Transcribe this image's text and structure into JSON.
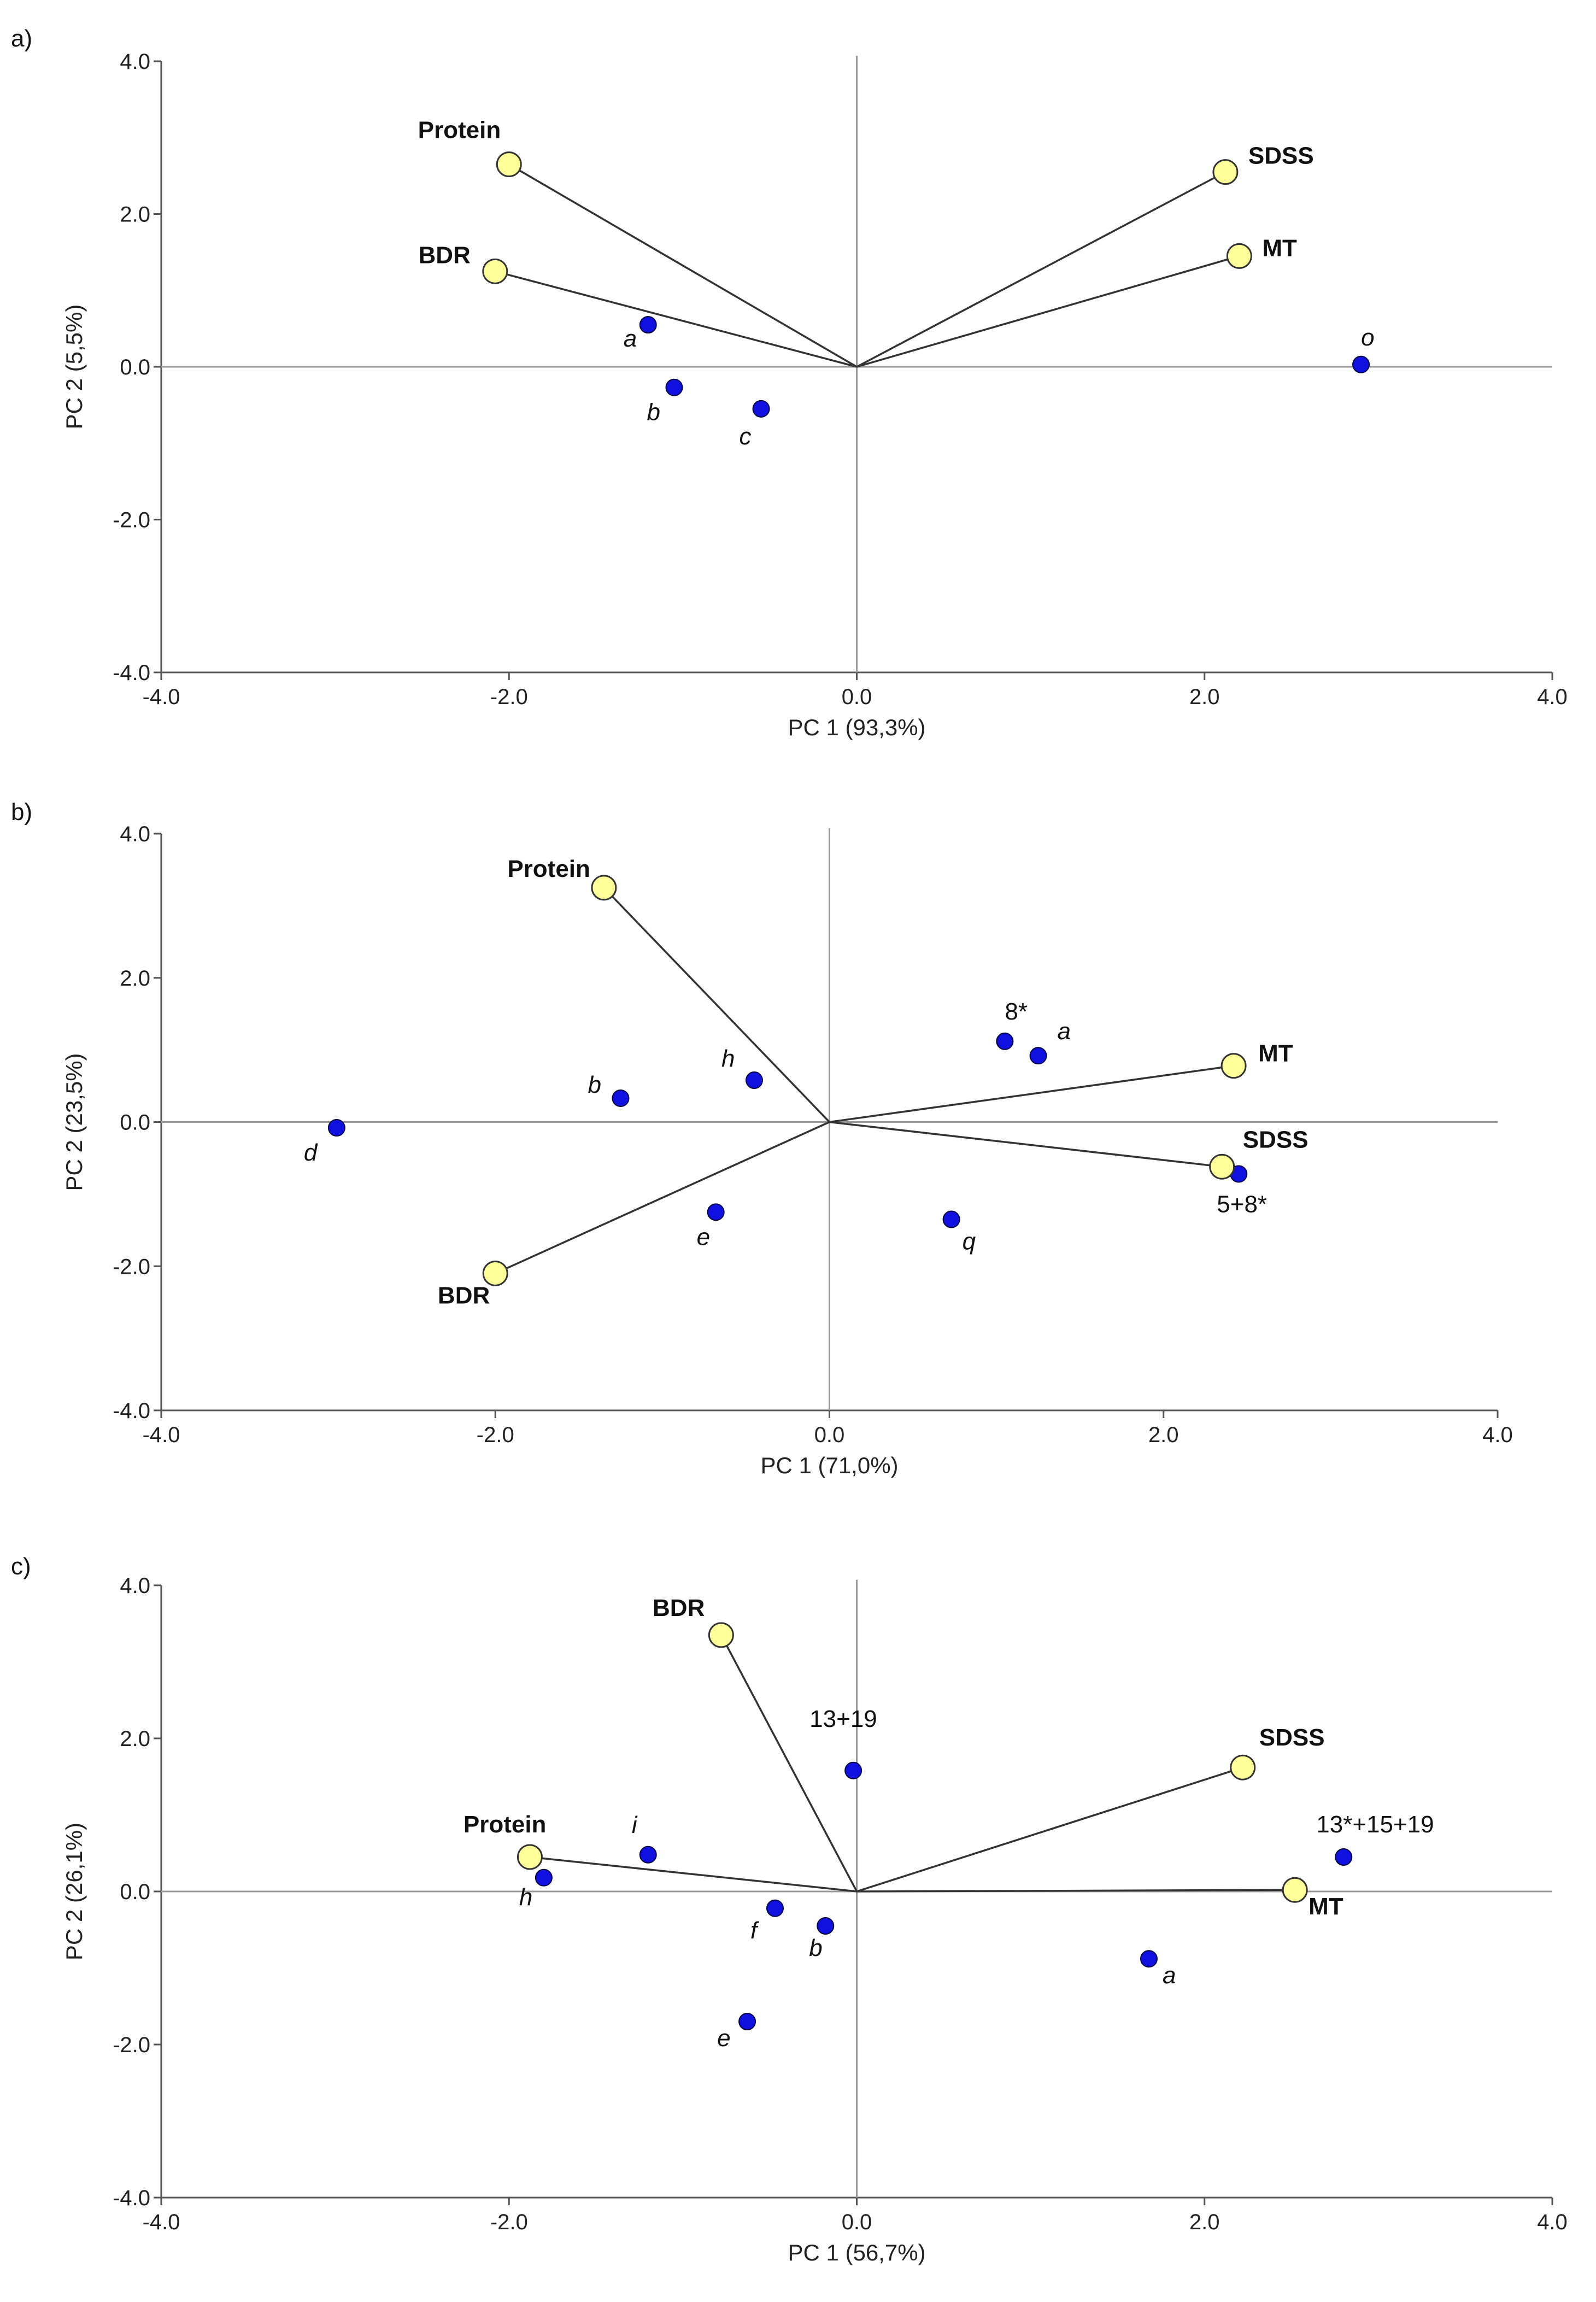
{
  "chart_data": [
    {
      "type": "scatter",
      "panel_label": "a)",
      "xlabel": "PC 1 (93,3%)",
      "ylabel": "PC 2 (5,5%)",
      "xlim": [
        -4,
        4
      ],
      "ylim": [
        -4,
        4
      ],
      "xticks": [
        "-4.0",
        "-2.0",
        "0.0",
        "2.0",
        "4.0"
      ],
      "yticks": [
        "4.0",
        "2.0",
        "0.0",
        "-2.0",
        "-4.0"
      ],
      "variables": [
        {
          "name": "Protein",
          "x": -2.0,
          "y": 2.65
        },
        {
          "name": "BDR",
          "x": -2.08,
          "y": 1.25
        },
        {
          "name": "SDSS",
          "x": 2.12,
          "y": 2.55
        },
        {
          "name": "MT",
          "x": 2.2,
          "y": 1.45
        }
      ],
      "observations": [
        {
          "name": "a",
          "x": -1.2,
          "y": 0.55,
          "italic": true
        },
        {
          "name": "b",
          "x": -1.05,
          "y": -0.27,
          "italic": true
        },
        {
          "name": "c",
          "x": -0.55,
          "y": -0.55,
          "italic": true
        },
        {
          "name": "o",
          "x": 2.9,
          "y": 0.03,
          "italic": true
        }
      ]
    },
    {
      "type": "scatter",
      "panel_label": "b)",
      "xlabel": "PC 1 (71,0%)",
      "ylabel": "PC 2 (23,5%)",
      "xlim": [
        -4,
        4
      ],
      "ylim": [
        -4,
        4
      ],
      "xticks": [
        "-4.0",
        "-2.0",
        "0.0",
        "2.0",
        "4.0"
      ],
      "yticks": [
        "4.0",
        "2.0",
        "0.0",
        "-2.0",
        "-4.0"
      ],
      "variables": [
        {
          "name": "Protein",
          "x": -1.35,
          "y": 3.25
        },
        {
          "name": "BDR",
          "x": -2.0,
          "y": -2.1
        },
        {
          "name": "MT",
          "x": 2.42,
          "y": 0.78
        },
        {
          "name": "SDSS",
          "x": 2.35,
          "y": -0.62
        }
      ],
      "observations": [
        {
          "name": "8*",
          "x": 1.05,
          "y": 1.12,
          "italic": false
        },
        {
          "name": "a",
          "x": 1.25,
          "y": 0.92,
          "italic": true
        },
        {
          "name": "b",
          "x": -1.25,
          "y": 0.33,
          "italic": true
        },
        {
          "name": "h",
          "x": -0.45,
          "y": 0.58,
          "italic": true
        },
        {
          "name": "d",
          "x": -2.95,
          "y": -0.08,
          "italic": true
        },
        {
          "name": "e",
          "x": -0.68,
          "y": -1.25,
          "italic": true
        },
        {
          "name": "q",
          "x": 0.73,
          "y": -1.35,
          "italic": true
        },
        {
          "name": "5+8*",
          "x": 2.45,
          "y": -0.72,
          "italic": false
        }
      ]
    },
    {
      "type": "scatter",
      "panel_label": "c)",
      "xlabel": "PC 1 (56,7%)",
      "ylabel": "PC 2 (26,1%)",
      "xlim": [
        -4,
        4
      ],
      "ylim": [
        -4,
        4
      ],
      "xticks": [
        "-4.0",
        "-2.0",
        "0.0",
        "2.0",
        "4.0"
      ],
      "yticks": [
        "4.0",
        "2.0",
        "0.0",
        "-2.0",
        "-4.0"
      ],
      "variables": [
        {
          "name": "BDR",
          "x": -0.78,
          "y": 3.35
        },
        {
          "name": "SDSS",
          "x": 2.22,
          "y": 1.62
        },
        {
          "name": "Protein",
          "x": -1.88,
          "y": 0.45
        },
        {
          "name": "MT",
          "x": 2.52,
          "y": 0.02
        }
      ],
      "observations": [
        {
          "name": "13+19",
          "x": -0.02,
          "y": 1.58,
          "italic": false
        },
        {
          "name": "13*+15+19",
          "x": 2.8,
          "y": 0.45,
          "italic": false
        },
        {
          "name": "i",
          "x": -1.2,
          "y": 0.48,
          "italic": true
        },
        {
          "name": "h",
          "x": -1.8,
          "y": 0.18,
          "italic": true
        },
        {
          "name": "f",
          "x": -0.47,
          "y": -0.22,
          "italic": true
        },
        {
          "name": "b",
          "x": -0.18,
          "y": -0.45,
          "italic": true
        },
        {
          "name": "a",
          "x": 1.68,
          "y": -0.88,
          "italic": true
        },
        {
          "name": "e",
          "x": -0.63,
          "y": -1.7,
          "italic": true
        }
      ]
    }
  ],
  "colors": {
    "variable_fill": "#ffff99",
    "variable_stroke": "#333333",
    "observation_fill": "#1010e0",
    "observation_stroke": "#000040",
    "vector": "#333333",
    "axis": "#555555",
    "crosshair": "#999999"
  }
}
